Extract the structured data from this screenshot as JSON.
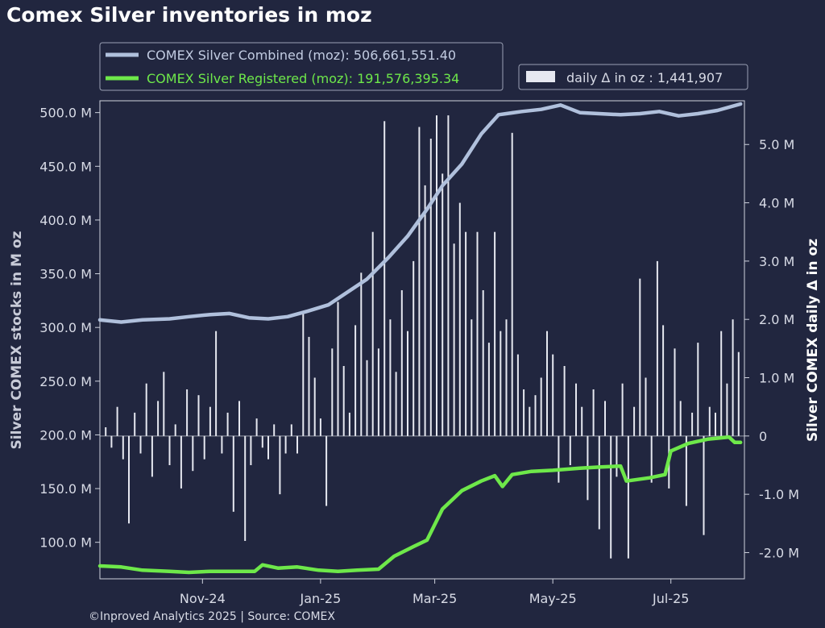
{
  "title": "Comex Silver inventories in moz",
  "footer": "©Inproved Analytics 2025 | Source: COMEX",
  "colors": {
    "background": "#21263f",
    "combined": "#b0c0dc",
    "registered": "#6ee84a",
    "bars": "#e6e8f0",
    "text": "#d8dbe6"
  },
  "legend": {
    "combined_label": "COMEX Silver Combined (moz): 506,661,551.40",
    "registered_label": "COMEX Silver Registered (moz): 191,576,395.34",
    "bars_label": "daily Δ in oz : 1,441,907"
  },
  "chart_data": {
    "type": "line",
    "title": "Comex Silver inventories in moz",
    "ylabel_left": "Silver COMEX stocks in M oz",
    "ylabel_right": "Silver COMEX daily Δ in oz",
    "x_ticks": [
      {
        "date": "2024-11-01",
        "label": "Nov-24"
      },
      {
        "date": "2025-01-01",
        "label": "Jan-25"
      },
      {
        "date": "2025-03-01",
        "label": "Mar-25"
      },
      {
        "date": "2025-05-01",
        "label": "May-25"
      },
      {
        "date": "2025-07-01",
        "label": "Jul-25"
      }
    ],
    "xlim": [
      "2024-09-09",
      "2025-08-08"
    ],
    "ylim_left": [
      66,
      511
    ],
    "ylim_right": [
      -2.45,
      5.75
    ],
    "left_ticks": [
      100,
      150,
      200,
      250,
      300,
      350,
      400,
      450,
      500
    ],
    "left_tick_labels": [
      "100.0 M",
      "150.0 M",
      "200.0 M",
      "250.0 M",
      "300.0 M",
      "350.0 M",
      "400.0 M",
      "450.0 M",
      "500.0 M"
    ],
    "right_ticks": [
      -2,
      -1,
      0,
      1,
      2,
      3,
      4,
      5
    ],
    "right_tick_labels": [
      "-2.0 M",
      "-1.0 M",
      "0",
      "1.0 M",
      "2.0 M",
      "3.0 M",
      "4.0 M",
      "5.0 M"
    ],
    "series": [
      {
        "name": "COMEX Silver Combined (moz)",
        "axis": "left",
        "points": [
          [
            "2024-09-09",
            307
          ],
          [
            "2024-09-20",
            305
          ],
          [
            "2024-10-01",
            307
          ],
          [
            "2024-10-15",
            308
          ],
          [
            "2024-10-25",
            310
          ],
          [
            "2024-11-05",
            312
          ],
          [
            "2024-11-15",
            313
          ],
          [
            "2024-11-25",
            309
          ],
          [
            "2024-12-05",
            308
          ],
          [
            "2024-12-15",
            310
          ],
          [
            "2024-12-25",
            315
          ],
          [
            "2025-01-05",
            321
          ],
          [
            "2025-01-15",
            333
          ],
          [
            "2025-01-25",
            345
          ],
          [
            "2025-02-05",
            365
          ],
          [
            "2025-02-15",
            385
          ],
          [
            "2025-02-25",
            410
          ],
          [
            "2025-03-05",
            432
          ],
          [
            "2025-03-15",
            452
          ],
          [
            "2025-03-25",
            480
          ],
          [
            "2025-04-03",
            498
          ],
          [
            "2025-04-15",
            501
          ],
          [
            "2025-04-25",
            503
          ],
          [
            "2025-05-05",
            507
          ],
          [
            "2025-05-15",
            500
          ],
          [
            "2025-05-25",
            499
          ],
          [
            "2025-06-05",
            498
          ],
          [
            "2025-06-15",
            499
          ],
          [
            "2025-06-25",
            501
          ],
          [
            "2025-07-05",
            497
          ],
          [
            "2025-07-15",
            499
          ],
          [
            "2025-07-25",
            502
          ],
          [
            "2025-08-06",
            508
          ]
        ]
      },
      {
        "name": "COMEX Silver Registered (moz)",
        "axis": "left",
        "points": [
          [
            "2024-09-09",
            78
          ],
          [
            "2024-09-20",
            77
          ],
          [
            "2024-10-01",
            74
          ],
          [
            "2024-10-15",
            73
          ],
          [
            "2024-10-25",
            72
          ],
          [
            "2024-11-05",
            73
          ],
          [
            "2024-11-20",
            73
          ],
          [
            "2024-11-28",
            73
          ],
          [
            "2024-12-02",
            79
          ],
          [
            "2024-12-10",
            76
          ],
          [
            "2024-12-20",
            77
          ],
          [
            "2024-12-31",
            74
          ],
          [
            "2025-01-10",
            73
          ],
          [
            "2025-01-20",
            74
          ],
          [
            "2025-01-31",
            75
          ],
          [
            "2025-02-08",
            87
          ],
          [
            "2025-02-18",
            96
          ],
          [
            "2025-02-25",
            102
          ],
          [
            "2025-03-05",
            131
          ],
          [
            "2025-03-15",
            148
          ],
          [
            "2025-03-25",
            157
          ],
          [
            "2025-04-01",
            162
          ],
          [
            "2025-04-05",
            152
          ],
          [
            "2025-04-10",
            163
          ],
          [
            "2025-04-20",
            166
          ],
          [
            "2025-05-01",
            167
          ],
          [
            "2025-05-15",
            169
          ],
          [
            "2025-05-25",
            170
          ],
          [
            "2025-06-05",
            171
          ],
          [
            "2025-06-08",
            157
          ],
          [
            "2025-06-20",
            160
          ],
          [
            "2025-06-28",
            163
          ],
          [
            "2025-07-01",
            185
          ],
          [
            "2025-07-10",
            192
          ],
          [
            "2025-07-20",
            196
          ],
          [
            "2025-07-31",
            198
          ],
          [
            "2025-08-03",
            193
          ],
          [
            "2025-08-06",
            193
          ]
        ]
      },
      {
        "name": "daily Δ in oz",
        "axis": "right",
        "type": "bar",
        "unit": "M oz",
        "points": [
          [
            "2024-09-12",
            0.15
          ],
          [
            "2024-09-15",
            -0.2
          ],
          [
            "2024-09-18",
            0.5
          ],
          [
            "2024-09-21",
            -0.4
          ],
          [
            "2024-09-24",
            -1.5
          ],
          [
            "2024-09-27",
            0.4
          ],
          [
            "2024-09-30",
            -0.3
          ],
          [
            "2024-10-03",
            0.9
          ],
          [
            "2024-10-06",
            -0.7
          ],
          [
            "2024-10-09",
            0.6
          ],
          [
            "2024-10-12",
            1.1
          ],
          [
            "2024-10-15",
            -0.5
          ],
          [
            "2024-10-18",
            0.2
          ],
          [
            "2024-10-21",
            -0.9
          ],
          [
            "2024-10-24",
            0.8
          ],
          [
            "2024-10-27",
            -0.6
          ],
          [
            "2024-10-30",
            0.7
          ],
          [
            "2024-11-02",
            -0.4
          ],
          [
            "2024-11-05",
            0.5
          ],
          [
            "2024-11-08",
            1.8
          ],
          [
            "2024-11-11",
            -0.3
          ],
          [
            "2024-11-14",
            0.4
          ],
          [
            "2024-11-17",
            -1.3
          ],
          [
            "2024-11-20",
            0.6
          ],
          [
            "2024-11-23",
            -1.8
          ],
          [
            "2024-11-26",
            -0.5
          ],
          [
            "2024-11-29",
            0.3
          ],
          [
            "2024-12-02",
            -0.2
          ],
          [
            "2024-12-05",
            -0.4
          ],
          [
            "2024-12-08",
            0.2
          ],
          [
            "2024-12-11",
            -1.0
          ],
          [
            "2024-12-14",
            -0.3
          ],
          [
            "2024-12-17",
            0.2
          ],
          [
            "2024-12-20",
            -0.3
          ],
          [
            "2024-12-23",
            2.1
          ],
          [
            "2024-12-26",
            1.7
          ],
          [
            "2024-12-29",
            1.0
          ],
          [
            "2025-01-01",
            0.3
          ],
          [
            "2025-01-04",
            -1.2
          ],
          [
            "2025-01-07",
            1.5
          ],
          [
            "2025-01-10",
            2.3
          ],
          [
            "2025-01-13",
            1.2
          ],
          [
            "2025-01-16",
            0.4
          ],
          [
            "2025-01-19",
            1.9
          ],
          [
            "2025-01-22",
            2.8
          ],
          [
            "2025-01-25",
            1.3
          ],
          [
            "2025-01-28",
            3.5
          ],
          [
            "2025-01-31",
            1.5
          ],
          [
            "2025-02-03",
            5.4
          ],
          [
            "2025-02-06",
            2.0
          ],
          [
            "2025-02-09",
            1.1
          ],
          [
            "2025-02-12",
            2.5
          ],
          [
            "2025-02-15",
            1.8
          ],
          [
            "2025-02-18",
            3.0
          ],
          [
            "2025-02-21",
            5.3
          ],
          [
            "2025-02-24",
            4.3
          ],
          [
            "2025-02-27",
            5.1
          ],
          [
            "2025-03-02",
            5.5
          ],
          [
            "2025-03-05",
            4.5
          ],
          [
            "2025-03-08",
            5.5
          ],
          [
            "2025-03-11",
            3.3
          ],
          [
            "2025-03-14",
            4.0
          ],
          [
            "2025-03-17",
            3.5
          ],
          [
            "2025-03-20",
            2.0
          ],
          [
            "2025-03-23",
            3.5
          ],
          [
            "2025-03-26",
            2.5
          ],
          [
            "2025-03-29",
            1.6
          ],
          [
            "2025-04-01",
            3.5
          ],
          [
            "2025-04-04",
            1.8
          ],
          [
            "2025-04-07",
            2.0
          ],
          [
            "2025-04-10",
            5.2
          ],
          [
            "2025-04-13",
            1.4
          ],
          [
            "2025-04-16",
            0.8
          ],
          [
            "2025-04-19",
            0.5
          ],
          [
            "2025-04-22",
            0.7
          ],
          [
            "2025-04-25",
            1.0
          ],
          [
            "2025-04-28",
            1.8
          ],
          [
            "2025-05-01",
            1.4
          ],
          [
            "2025-05-04",
            -0.8
          ],
          [
            "2025-05-07",
            1.2
          ],
          [
            "2025-05-10",
            -0.5
          ],
          [
            "2025-05-13",
            0.9
          ],
          [
            "2025-05-16",
            0.5
          ],
          [
            "2025-05-19",
            -1.1
          ],
          [
            "2025-05-22",
            0.8
          ],
          [
            "2025-05-25",
            -1.6
          ],
          [
            "2025-05-28",
            0.6
          ],
          [
            "2025-05-31",
            -2.1
          ],
          [
            "2025-06-03",
            -0.7
          ],
          [
            "2025-06-06",
            0.9
          ],
          [
            "2025-06-09",
            -2.1
          ],
          [
            "2025-06-12",
            0.5
          ],
          [
            "2025-06-15",
            2.7
          ],
          [
            "2025-06-18",
            1.0
          ],
          [
            "2025-06-21",
            -0.8
          ],
          [
            "2025-06-24",
            3.0
          ],
          [
            "2025-06-27",
            1.9
          ],
          [
            "2025-06-30",
            -0.9
          ],
          [
            "2025-07-03",
            1.5
          ],
          [
            "2025-07-06",
            0.6
          ],
          [
            "2025-07-09",
            -1.2
          ],
          [
            "2025-07-12",
            0.4
          ],
          [
            "2025-07-15",
            1.6
          ],
          [
            "2025-07-18",
            -1.7
          ],
          [
            "2025-07-21",
            0.5
          ],
          [
            "2025-07-24",
            0.4
          ],
          [
            "2025-07-27",
            1.8
          ],
          [
            "2025-07-30",
            0.9
          ],
          [
            "2025-08-02",
            2.0
          ],
          [
            "2025-08-05",
            1.44
          ]
        ]
      }
    ]
  }
}
